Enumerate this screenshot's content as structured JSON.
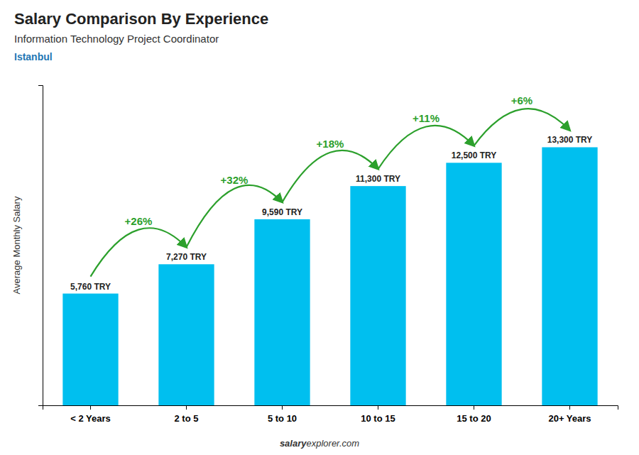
{
  "chart_data": {
    "type": "bar",
    "title": "Salary Comparison By Experience",
    "subtitle": "Information Technology Project Coordinator",
    "annotations": [
      "Istanbul",
      "salary",
      "explorer.com"
    ],
    "ylabel": "Average Monthly Salary",
    "categories": [
      "< 2 Years",
      "2 to 5",
      "5 to 10",
      "10 to 15",
      "15 to 20",
      "20+ Years"
    ],
    "values": [
      5760,
      7270,
      9590,
      11300,
      12500,
      13300
    ],
    "value_labels": [
      "5,760 TRY",
      "7,270 TRY",
      "9,590 TRY",
      "11,300 TRY",
      "12,500 TRY",
      "13,300 TRY"
    ],
    "data_labels": true,
    "changes": [
      {
        "value": 26,
        "label": "+26%"
      },
      {
        "value": 32,
        "label": "+32%"
      },
      {
        "value": 18,
        "label": "+18%"
      },
      {
        "value": 11,
        "label": "+11%"
      },
      {
        "value": 6,
        "label": "+6%"
      }
    ],
    "color": "#00bfef",
    "ylim": [
      0,
      16500
    ],
    "yticks": [],
    "tick_labels": "x",
    "grid": false
  }
}
